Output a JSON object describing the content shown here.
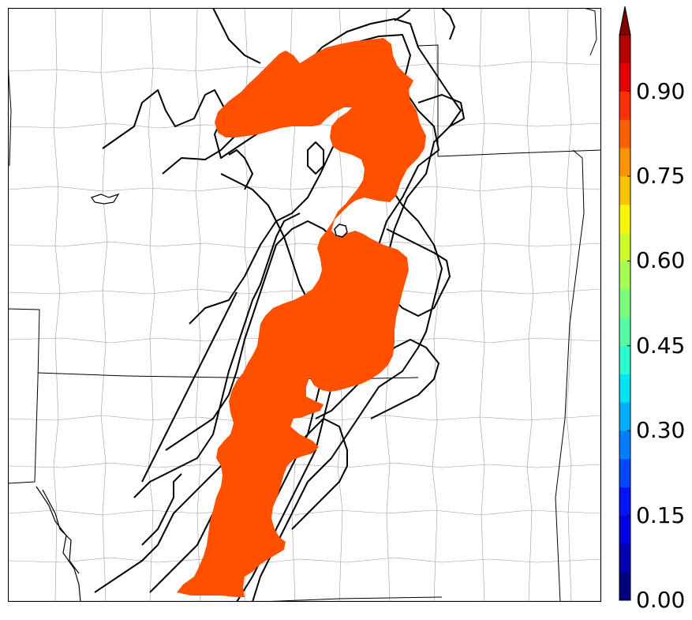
{
  "map": {
    "subject": "probability-swath-map",
    "background_color": "#ffffff",
    "county_line_color": "#9a9a9a",
    "state_line_color": "#000000",
    "contour_color": "#000000",
    "swath_color": "#ff5000"
  },
  "colorbar": {
    "min": 0.0,
    "max": 1.0,
    "levels": 20,
    "extend": "max",
    "tick_labels": [
      "0.00",
      "0.15",
      "0.30",
      "0.45",
      "0.60",
      "0.75",
      "0.90"
    ],
    "tick_values": [
      0.0,
      0.15,
      0.3,
      0.45,
      0.6,
      0.75,
      0.9
    ],
    "colors": [
      "#00007f",
      "#0000b2",
      "#0000e5",
      "#0014ff",
      "#0048ff",
      "#007cff",
      "#00b0ff",
      "#00e4f8",
      "#29ffce",
      "#53ffa4",
      "#7cff7a",
      "#a4ff53",
      "#ceff29",
      "#f8f500",
      "#ffc400",
      "#ff9400",
      "#ff6300",
      "#ff3000",
      "#e50000",
      "#b20000"
    ],
    "extend_color": "#7f0000"
  }
}
